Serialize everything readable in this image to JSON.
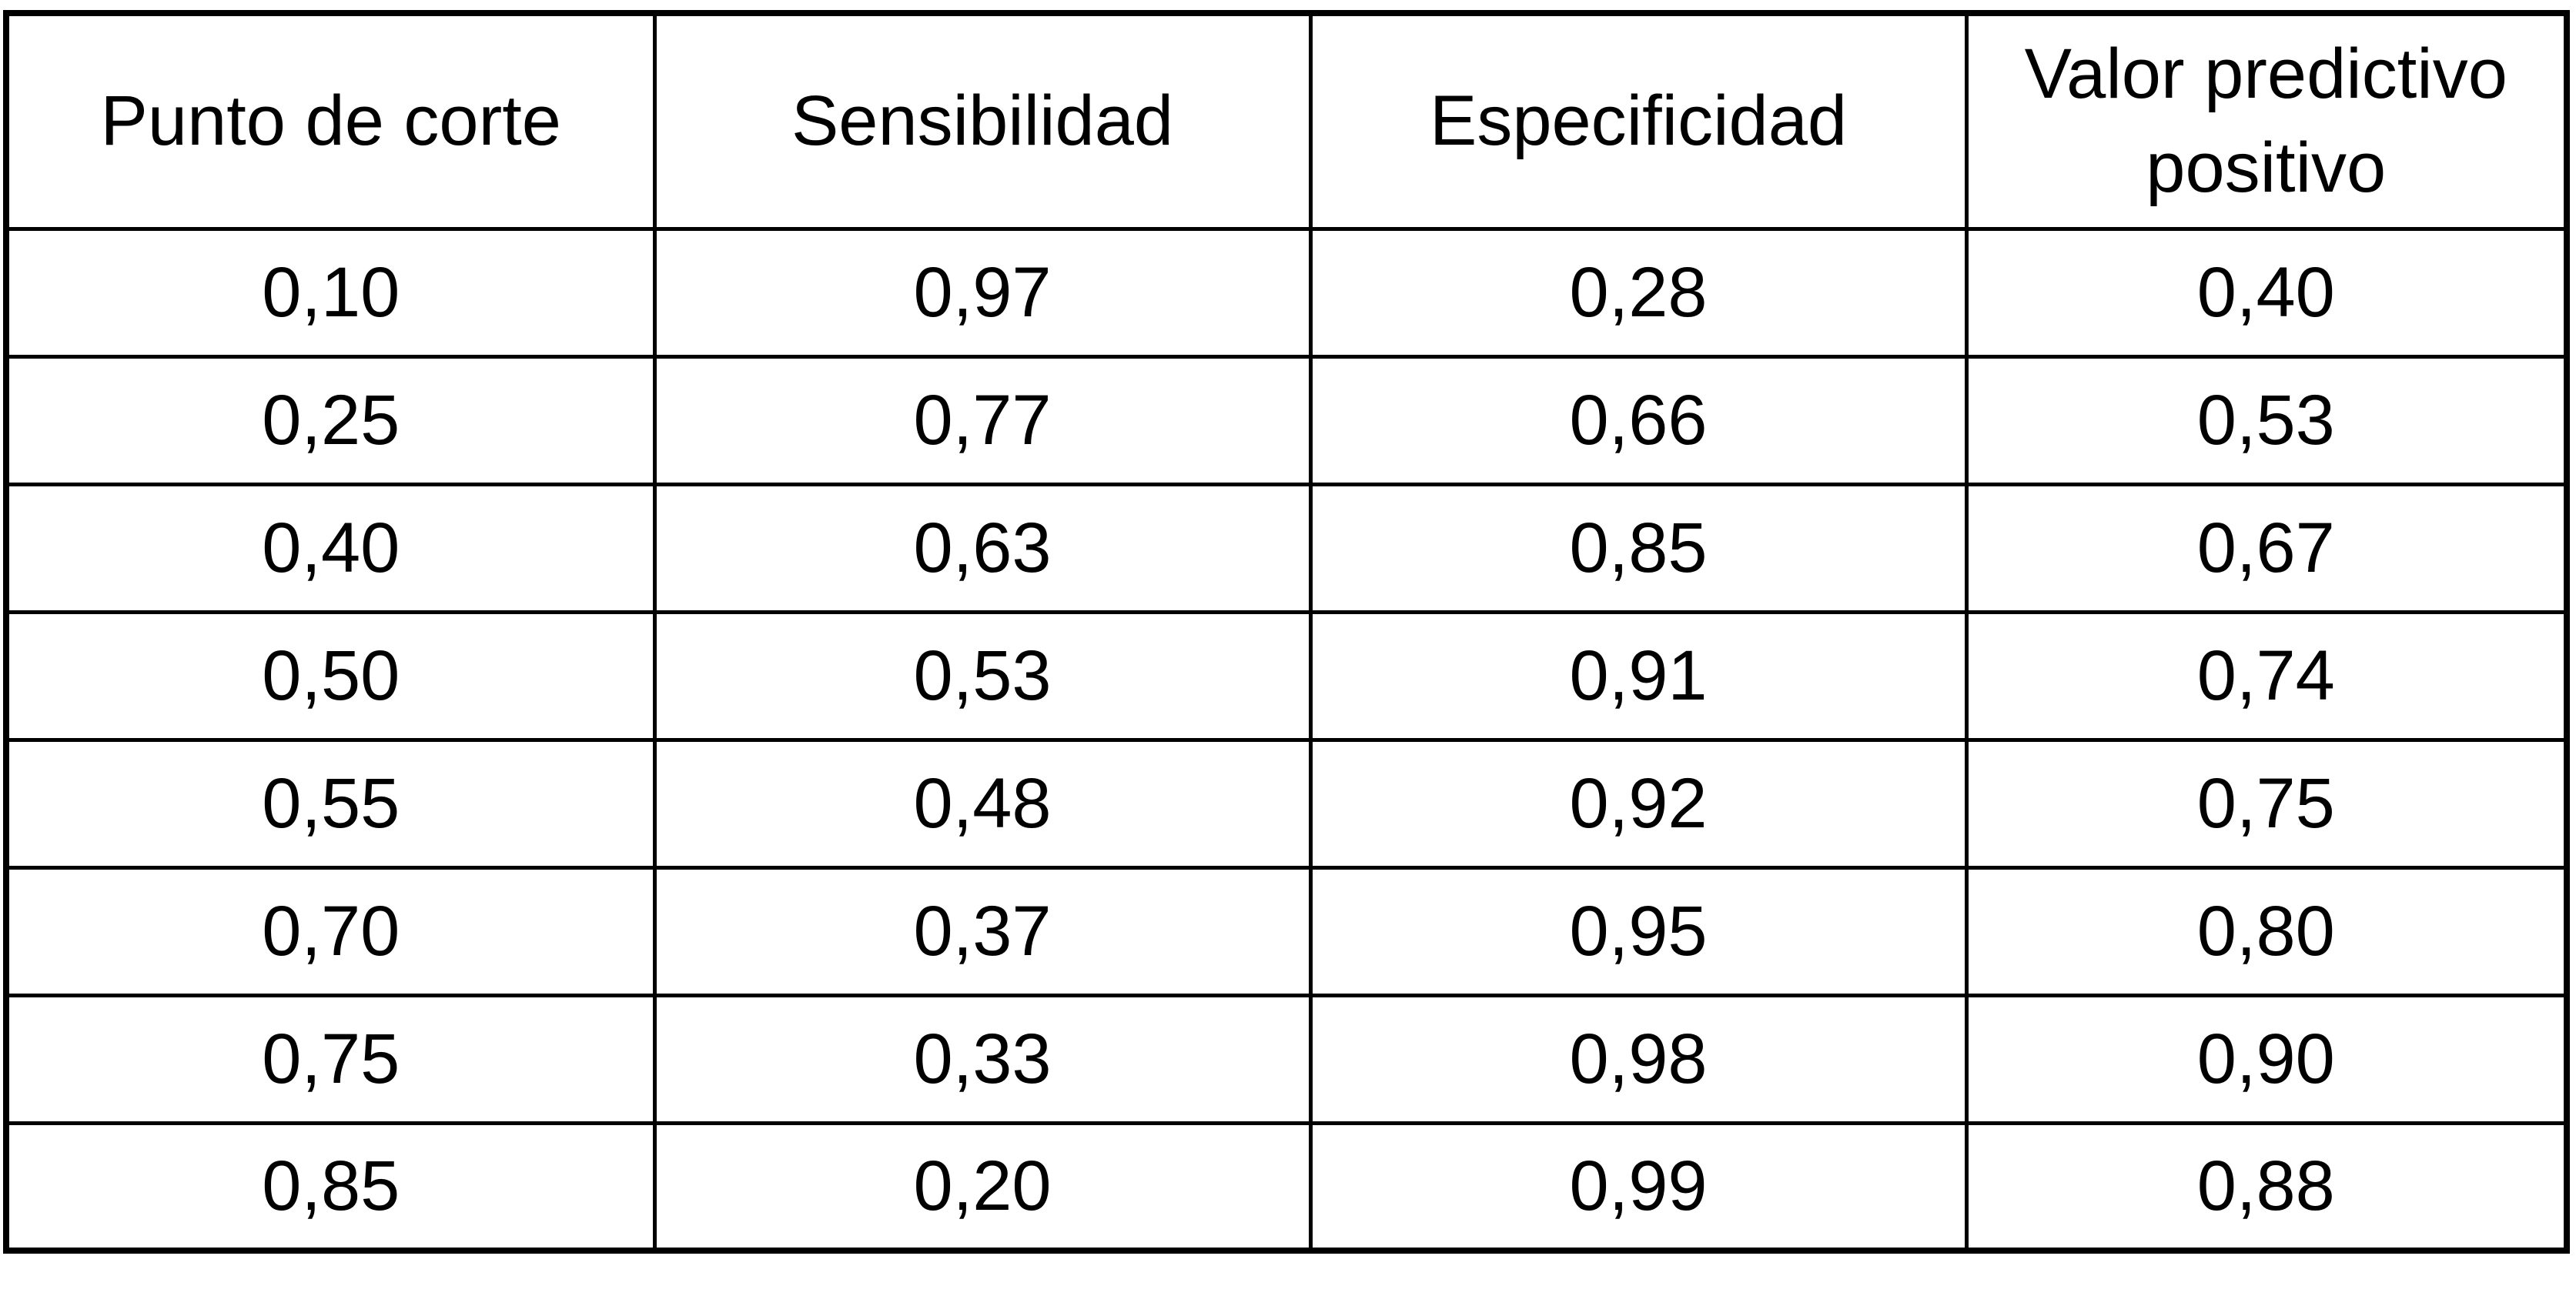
{
  "table": {
    "headers": [
      "Punto de corte",
      "Sensibilidad",
      "Especificidad",
      "Valor predictivo positivo"
    ],
    "rows": [
      [
        "0,10",
        "0,97",
        "0,28",
        "0,40"
      ],
      [
        "0,25",
        "0,77",
        "0,66",
        "0,53"
      ],
      [
        "0,40",
        "0,63",
        "0,85",
        "0,67"
      ],
      [
        "0,50",
        "0,53",
        "0,91",
        "0,74"
      ],
      [
        "0,55",
        "0,48",
        "0,92",
        "0,75"
      ],
      [
        "0,70",
        "0,37",
        "0,95",
        "0,80"
      ],
      [
        "0,75",
        "0,33",
        "0,98",
        "0,90"
      ],
      [
        "0,85",
        "0,20",
        "0,99",
        "0,88"
      ]
    ]
  },
  "chart_data": {
    "type": "table",
    "title": "",
    "columns": [
      "Punto de corte",
      "Sensibilidad",
      "Especificidad",
      "Valor predictivo positivo"
    ],
    "rows": [
      [
        0.1,
        0.97,
        0.28,
        0.4
      ],
      [
        0.25,
        0.77,
        0.66,
        0.53
      ],
      [
        0.4,
        0.63,
        0.85,
        0.67
      ],
      [
        0.5,
        0.53,
        0.91,
        0.74
      ],
      [
        0.55,
        0.48,
        0.92,
        0.75
      ],
      [
        0.7,
        0.37,
        0.95,
        0.8
      ],
      [
        0.75,
        0.33,
        0.98,
        0.9
      ],
      [
        0.85,
        0.2,
        0.99,
        0.88
      ]
    ],
    "decimal_separator": ",",
    "layout": {
      "grid": "all-borders",
      "header_rows": 1,
      "text_align": "center"
    }
  },
  "colors": {
    "border": "#000000",
    "text": "#000000",
    "background": "#ffffff"
  }
}
